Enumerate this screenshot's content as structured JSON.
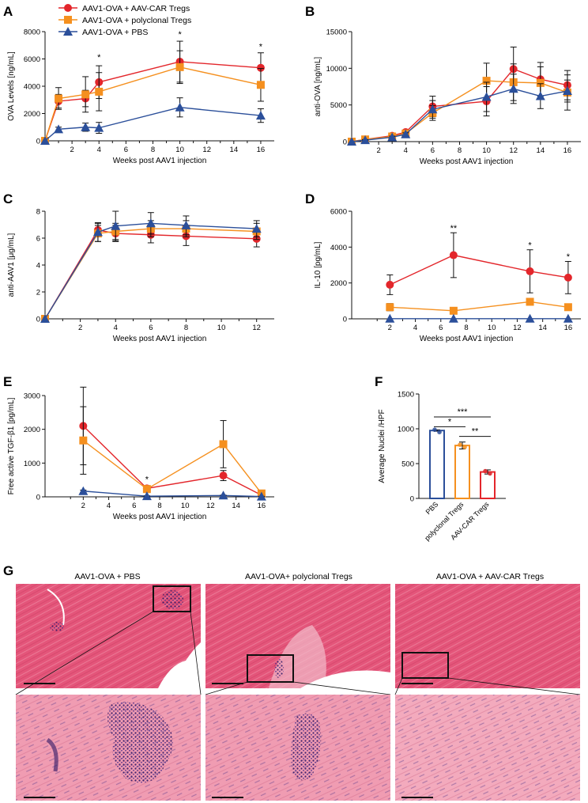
{
  "colors": {
    "car": "#e3262b",
    "poly": "#f5901f",
    "pbs": "#2b4f9a",
    "axis": "#111111",
    "tissue": "#e05a7a",
    "tissue_light": "#f0a3b5",
    "nuclei": "#3a1f6e"
  },
  "legend": {
    "car": "AAV1-OVA + AAV-CAR Tregs",
    "poly": "AAV1-OVA + polyclonal Tregs",
    "pbs": "AAV1-OVA + PBS"
  },
  "chart_data": [
    {
      "panel": "A",
      "type": "line",
      "xlabel": "Weeks post AAV1 injection",
      "ylabel": "OVA Levels [ng/mL]",
      "xlim": [
        0,
        17
      ],
      "ylim": [
        0,
        8000
      ],
      "xticks": [
        2,
        4,
        6,
        8,
        10,
        12,
        14,
        16
      ],
      "yticks": [
        0,
        2000,
        4000,
        6000,
        8000
      ],
      "series": [
        {
          "name": "AAV1-OVA + AAV-CAR Tregs",
          "key": "car",
          "marker": "circle",
          "x": [
            0,
            1,
            3,
            4,
            10,
            16
          ],
          "y": [
            0,
            2900,
            3100,
            4300,
            5800,
            5350
          ],
          "err": [
            0,
            500,
            600,
            1200,
            1500,
            1100
          ]
        },
        {
          "name": "AAV1-OVA + polyclonal Tregs",
          "key": "poly",
          "marker": "square",
          "x": [
            0,
            1,
            3,
            4,
            10,
            16
          ],
          "y": [
            0,
            3100,
            3400,
            3600,
            5400,
            4100
          ],
          "err": [
            0,
            800,
            1300,
            1400,
            1200,
            1200
          ]
        },
        {
          "name": "AAV1-OVA + PBS",
          "key": "pbs",
          "marker": "triangle",
          "x": [
            0,
            1,
            3,
            4,
            10,
            16
          ],
          "y": [
            0,
            850,
            1000,
            950,
            2450,
            1850
          ],
          "err": [
            0,
            150,
            300,
            400,
            700,
            500
          ]
        }
      ],
      "annotations": [
        {
          "x": 4,
          "y": 5900,
          "text": "*"
        },
        {
          "x": 10,
          "y": 7600,
          "text": "*"
        },
        {
          "x": 16,
          "y": 6700,
          "text": "*"
        }
      ]
    },
    {
      "panel": "B",
      "type": "line",
      "xlabel": "Weeks post AAV1 injection",
      "ylabel": "anti-OVA [ng/mL]",
      "xlim": [
        0,
        17
      ],
      "ylim": [
        0,
        15000
      ],
      "xticks": [
        2,
        4,
        6,
        8,
        10,
        12,
        14,
        16
      ],
      "yticks": [
        0,
        5000,
        10000,
        15000
      ],
      "series": [
        {
          "name": "AAV1-OVA + AAV-CAR Tregs",
          "key": "car",
          "marker": "circle",
          "x": [
            0,
            1,
            3,
            4,
            6,
            10,
            12,
            14,
            16
          ],
          "y": [
            0,
            300,
            800,
            1300,
            4800,
            5500,
            9900,
            8500,
            7700
          ],
          "err": [
            0,
            100,
            150,
            200,
            1400,
            2000,
            3000,
            2300,
            2000
          ]
        },
        {
          "name": "AAV1-OVA + polyclonal Tregs",
          "key": "poly",
          "marker": "square",
          "x": [
            0,
            1,
            3,
            4,
            6,
            10,
            12,
            14,
            16
          ],
          "y": [
            0,
            300,
            700,
            1100,
            3900,
            8300,
            8100,
            8000,
            6700
          ],
          "err": [
            0,
            100,
            150,
            200,
            1000,
            2400,
            2500,
            2200,
            2400
          ]
        },
        {
          "name": "AAV1-OVA + PBS",
          "key": "pbs",
          "marker": "triangle",
          "x": [
            0,
            1,
            3,
            4,
            6,
            10,
            12,
            14,
            16
          ],
          "y": [
            0,
            200,
            600,
            1000,
            4400,
            6100,
            7200,
            6200,
            6900
          ],
          "err": [
            0,
            80,
            150,
            200,
            1200,
            2000,
            2000,
            1700,
            1500
          ]
        }
      ],
      "annotations": []
    },
    {
      "panel": "C",
      "type": "line",
      "xlabel": "Weeks post AAV1 injection",
      "ylabel": "anti-AAV1 [μg/mL]",
      "xlim": [
        0,
        13
      ],
      "ylim": [
        0,
        8
      ],
      "xticks": [
        2,
        4,
        6,
        8,
        10,
        12
      ],
      "yticks": [
        0,
        2,
        4,
        6,
        8
      ],
      "series": [
        {
          "name": "AAV1-OVA + AAV-CAR Tregs",
          "key": "car",
          "marker": "circle",
          "x": [
            0,
            3,
            4,
            6,
            8,
            12
          ],
          "y": [
            0,
            6.6,
            6.35,
            6.25,
            6.15,
            5.95
          ],
          "err": [
            0,
            0.5,
            0.6,
            0.6,
            0.7,
            0.6
          ]
        },
        {
          "name": "AAV1-OVA + polyclonal Tregs",
          "key": "poly",
          "marker": "square",
          "x": [
            0,
            3,
            4,
            6,
            8,
            12
          ],
          "y": [
            0,
            6.35,
            6.5,
            6.7,
            6.7,
            6.5
          ],
          "err": [
            0,
            0.6,
            0.6,
            0.6,
            0.6,
            0.6
          ]
        },
        {
          "name": "AAV1-OVA + PBS",
          "key": "pbs",
          "marker": "triangle",
          "x": [
            0,
            3,
            4,
            6,
            8,
            12
          ],
          "y": [
            0,
            6.45,
            6.9,
            7.1,
            6.95,
            6.7
          ],
          "err": [
            0,
            0.7,
            1.1,
            0.8,
            0.7,
            0.6
          ]
        }
      ],
      "annotations": []
    },
    {
      "panel": "D",
      "type": "line",
      "xlabel": "Weeks post AAV1 injection",
      "ylabel": "IL-10 [pg/mL]",
      "xlim": [
        -1,
        17
      ],
      "ylim": [
        0,
        6000
      ],
      "xticks": [
        2,
        4,
        6,
        8,
        10,
        12,
        14,
        16
      ],
      "yticks": [
        0,
        2000,
        4000,
        6000
      ],
      "series": [
        {
          "name": "AAV1-OVA + AAV-CAR Tregs",
          "key": "car",
          "marker": "circle",
          "x": [
            2,
            7,
            13,
            16
          ],
          "y": [
            1900,
            3550,
            2650,
            2300
          ],
          "err": [
            550,
            1250,
            1200,
            900
          ]
        },
        {
          "name": "AAV1-OVA + polyclonal Tregs",
          "key": "poly",
          "marker": "square",
          "x": [
            2,
            7,
            13,
            16
          ],
          "y": [
            650,
            450,
            950,
            650
          ],
          "err": [
            200,
            100,
            150,
            150
          ]
        },
        {
          "name": "AAV1-OVA + PBS",
          "key": "pbs",
          "marker": "triangle",
          "x": [
            2,
            7,
            13,
            16
          ],
          "y": [
            10,
            10,
            10,
            10
          ],
          "err": [
            0,
            0,
            0,
            0
          ]
        }
      ],
      "annotations": [
        {
          "x": 7,
          "y": 4900,
          "text": "**"
        },
        {
          "x": 13,
          "y": 3950,
          "text": "*"
        },
        {
          "x": 16,
          "y": 3300,
          "text": "*"
        }
      ]
    },
    {
      "panel": "E",
      "type": "line",
      "xlabel": "Weeks post AAV1 injection",
      "ylabel": "Free active TGF-β1 [pg/mL]",
      "xlim": [
        -1,
        17
      ],
      "ylim": [
        0,
        3000
      ],
      "xticks": [
        2,
        4,
        6,
        8,
        10,
        12,
        14,
        16
      ],
      "yticks": [
        0,
        1000,
        2000,
        3000
      ],
      "series": [
        {
          "name": "AAV1-OVA + AAV-CAR Tregs",
          "key": "car",
          "marker": "circle",
          "x": [
            2,
            7,
            13,
            16
          ],
          "y": [
            2100,
            250,
            630,
            50
          ],
          "err": [
            1150,
            80,
            150,
            30
          ]
        },
        {
          "name": "AAV1-OVA + polyclonal Tregs",
          "key": "poly",
          "marker": "square",
          "x": [
            2,
            7,
            13,
            16
          ],
          "y": [
            1670,
            230,
            1560,
            100
          ],
          "err": [
            1000,
            80,
            700,
            50
          ]
        },
        {
          "name": "AAV1-OVA + PBS",
          "key": "pbs",
          "marker": "triangle",
          "x": [
            2,
            7,
            13,
            16
          ],
          "y": [
            170,
            20,
            40,
            10
          ],
          "err": [
            30,
            10,
            10,
            5
          ]
        }
      ],
      "annotations": [
        {
          "x": 7,
          "y": 430,
          "text": "*"
        }
      ]
    },
    {
      "panel": "F",
      "type": "bar",
      "ylabel": "Average Nuclei /HPF",
      "categories": [
        "PBS",
        "polyclonal Tregs",
        "AAV-CAR Tregs"
      ],
      "keys": [
        "pbs",
        "poly",
        "car"
      ],
      "values": [
        975,
        760,
        380
      ],
      "err": [
        10,
        50,
        30
      ],
      "ylim": [
        0,
        1500
      ],
      "yticks": [
        0,
        500,
        1000,
        1500
      ],
      "comparisons": [
        {
          "from": 0,
          "to": 2,
          "y": 1170,
          "text": "***"
        },
        {
          "from": 0,
          "to": 1,
          "y": 1030,
          "text": "*"
        },
        {
          "from": 1,
          "to": 2,
          "y": 890,
          "text": "**"
        }
      ]
    }
  ],
  "panel_labels": {
    "a": "A",
    "b": "B",
    "c": "C",
    "d": "D",
    "e": "E",
    "f": "F",
    "g": "G"
  },
  "histology": {
    "titles": [
      "AAV1-OVA + PBS",
      "AAV1-OVA+ polyclonal Tregs",
      "AAV1-OVA + AAV-CAR Tregs"
    ]
  }
}
